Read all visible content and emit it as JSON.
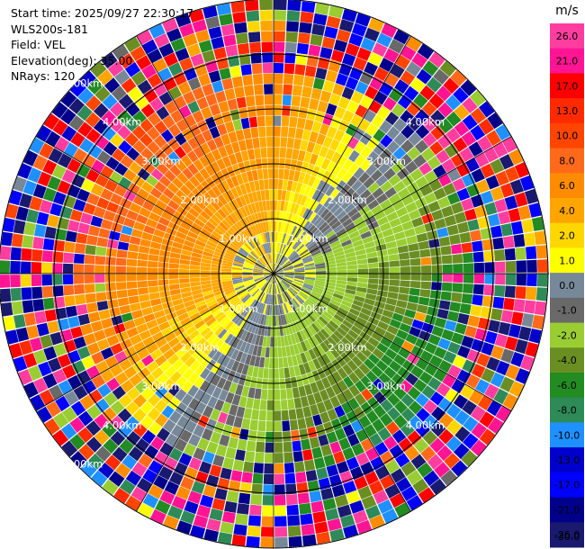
{
  "header": {
    "start_time": "Start time: 2025/09/27 22:30:17",
    "station": "WLS200s-181",
    "field": "Field: VEL",
    "elevation": "Elevation(deg): 35.00",
    "nrays": "NRays: 120"
  },
  "chart_data": {
    "type": "heatmap",
    "projection": "polar-ppi",
    "field": "VEL",
    "units": "m/s",
    "n_rays": 120,
    "elevation_deg": 35.0,
    "max_range_km": 5.0,
    "range_rings": [
      {
        "label": "1.00km",
        "labels_at": [
          "top-left",
          "bottom-right",
          "top-right",
          "bottom-left"
        ]
      },
      {
        "label": "2.00km",
        "labels_at": [
          "top-left",
          "top-right",
          "bottom-left",
          "bottom-right"
        ]
      },
      {
        "label": "3.00km",
        "labels_at": [
          "top-left",
          "top-right",
          "bottom-left",
          "bottom-right"
        ]
      },
      {
        "label": "4.00km",
        "labels_at": [
          "top-left",
          "top-right",
          "bottom-left",
          "bottom-right"
        ]
      },
      {
        "label": "5.00km",
        "labels_at": [
          "top-left",
          "bottom-left"
        ]
      }
    ],
    "colorbar": {
      "unit_label": "m/s",
      "ticks": [
        "26.0",
        "21.0",
        "17.0",
        "13.0",
        "10.0",
        "8.0",
        "6.0",
        "4.0",
        "2.0",
        "1.0",
        "0.0",
        "-1.0",
        "-2.0",
        "-4.0",
        "-6.0",
        "-8.0",
        "-10.0",
        "-13.0",
        "-17.0",
        "-21.0",
        "-26.0",
        "-30.0"
      ],
      "colors": [
        "#ff3d9e",
        "#ff1493",
        "#ff0000",
        "#ff2a00",
        "#ff4500",
        "#ff6a1a",
        "#ff8c00",
        "#ffa500",
        "#ffd700",
        "#ffff00",
        "#778899",
        "#696969",
        "#9acd32",
        "#6b8e23",
        "#228b22",
        "#2e8b57",
        "#1e90ff",
        "#0000cd",
        "#0000ff",
        "#00008b",
        "#191970"
      ]
    },
    "pattern": {
      "receding_sector": "west to north (orange, yellow)",
      "approaching_sector": "south to east (green)",
      "zero_band": "grey, near centre and along the transition",
      "noise_beyond_km": 3.5
    }
  }
}
